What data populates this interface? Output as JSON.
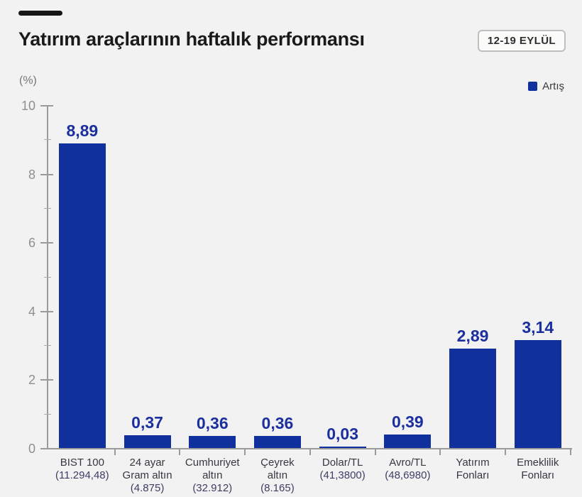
{
  "header": {
    "title": "Yatırım araçlarının haftalık performansı",
    "date_badge": "12-19 EYLÜL"
  },
  "chart_data": {
    "type": "bar",
    "title": "Yatırım araçlarının haftalık performansı",
    "period": "12-19 EYLÜL",
    "ylabel": "(%)",
    "xlabel": "",
    "ylim": [
      0,
      10
    ],
    "yticks": [
      0,
      2,
      4,
      6,
      8,
      10
    ],
    "minor_yticks": [
      1,
      3,
      5,
      7,
      9
    ],
    "grid": false,
    "legend_position": "top-right",
    "legend": [
      {
        "label": "Artış",
        "color": "#10309e"
      }
    ],
    "categories": [
      "BIST 100",
      "24 ayar Gram altın",
      "Cumhuriyet altın",
      "Çeyrek altın",
      "Dolar/TL",
      "Avro/TL",
      "Yatırım Fonları",
      "Emeklilik Fonları"
    ],
    "category_display": [
      "BIST 100",
      "24 ayar\nGram altın",
      "Cumhuriyet\naltın",
      "Çeyrek\naltın",
      "Dolar/TL",
      "Avro/TL",
      "Yatırım\nFonları",
      "Emeklilik\nFonları"
    ],
    "category_subtexts": [
      "(11.294,48)",
      "(4.875)",
      "(32.912)",
      "(8.165)",
      "(41,3800)",
      "(48,6980)",
      "",
      ""
    ],
    "values": [
      8.89,
      0.37,
      0.36,
      0.36,
      0.03,
      0.39,
      2.89,
      3.14
    ],
    "value_labels": [
      "8,89",
      "0,37",
      "0,36",
      "0,36",
      "0,03",
      "0,39",
      "2,89",
      "3,14"
    ]
  },
  "colors": {
    "background": "#f2f2f3",
    "bar": "#10309e",
    "value_label": "#1b2f9e",
    "axis": "#9a9a9a",
    "tick_label": "#8f8f8f",
    "title": "#1a1a1a"
  }
}
